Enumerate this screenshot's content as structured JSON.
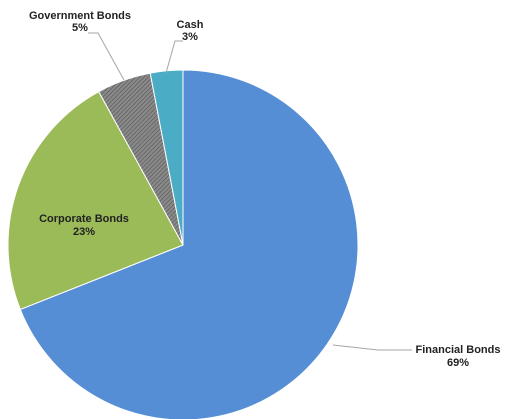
{
  "chart_data": {
    "type": "pie",
    "title": "",
    "slices": [
      {
        "label": "Financial Bonds",
        "value": 69,
        "value_label": "69%",
        "color": "#558ed5"
      },
      {
        "label": "Corporate Bonds",
        "value": 23,
        "value_label": "23%",
        "color": "#9bbb59"
      },
      {
        "label": "Government Bonds",
        "value": 5,
        "value_label": "5%",
        "color": "#7f7f7f",
        "pattern": "hatched"
      },
      {
        "label": "Cash",
        "value": 3,
        "value_label": "3%",
        "color": "#4bacc6"
      }
    ],
    "start": "12 o'clock",
    "direction": "clockwise",
    "legend": "none",
    "data_labels": "category name and percentage"
  }
}
